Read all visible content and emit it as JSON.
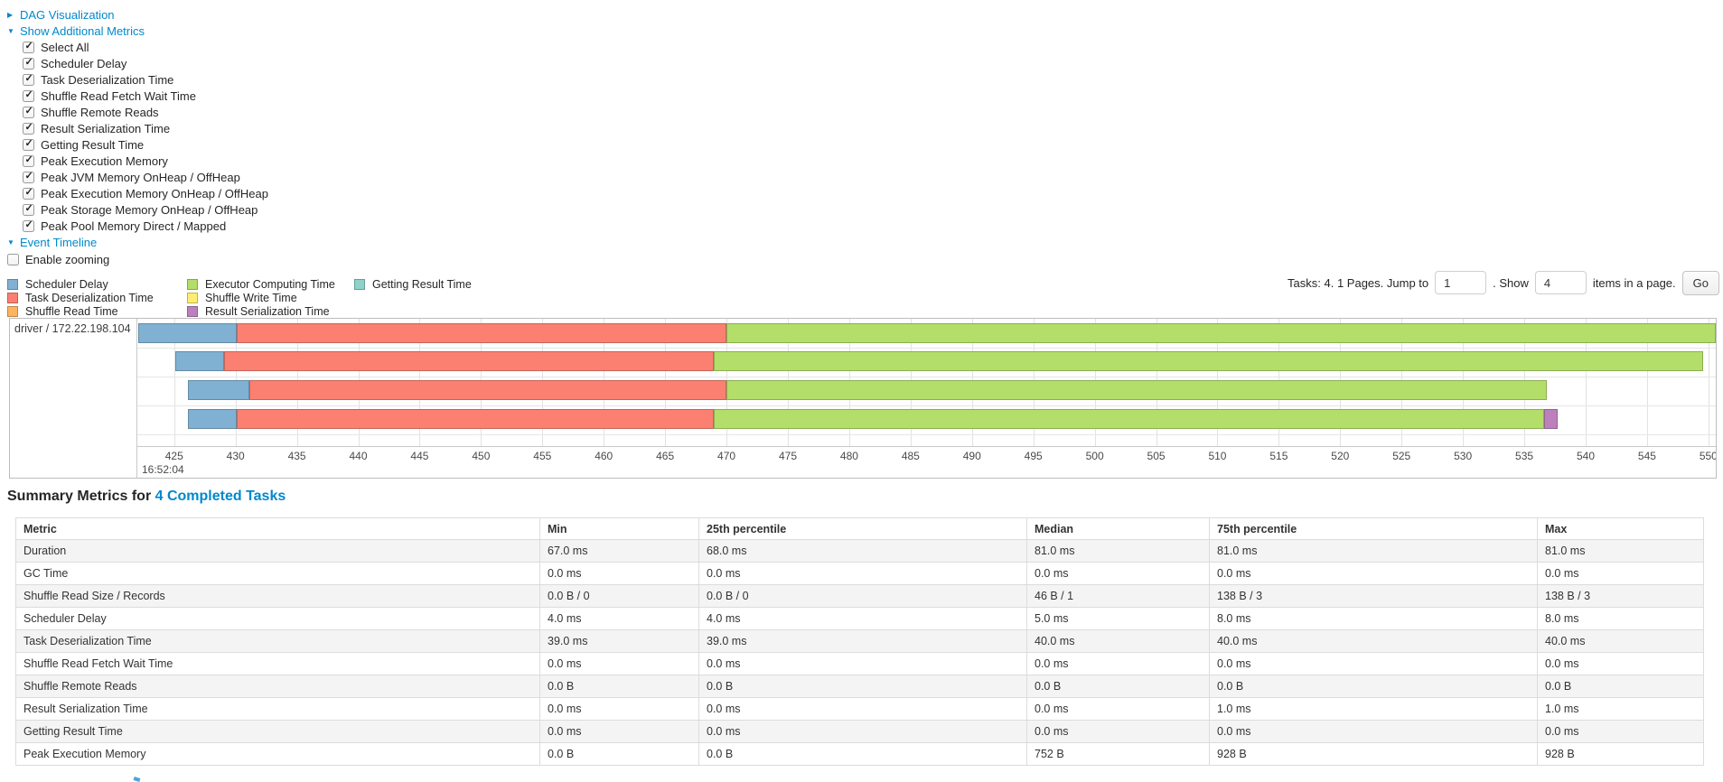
{
  "ui_colors": {
    "link": "#0088cc",
    "table_stripe": "#f4f4f4",
    "table_border": "#dcdcdc",
    "timeline_border": "#bdbdbd"
  },
  "controls": {
    "dag": {
      "arrow": "▶",
      "label": "DAG Visualization"
    },
    "metrics": {
      "arrow": "▼",
      "label": "Show Additional Metrics"
    },
    "checkboxes": [
      {
        "label": "Select All",
        "checked": true
      },
      {
        "label": "Scheduler Delay",
        "checked": true
      },
      {
        "label": "Task Deserialization Time",
        "checked": true
      },
      {
        "label": "Shuffle Read Fetch Wait Time",
        "checked": true
      },
      {
        "label": "Shuffle Remote Reads",
        "checked": true
      },
      {
        "label": "Result Serialization Time",
        "checked": true
      },
      {
        "label": "Getting Result Time",
        "checked": true
      },
      {
        "label": "Peak Execution Memory",
        "checked": true
      },
      {
        "label": "Peak JVM Memory OnHeap / OffHeap",
        "checked": true
      },
      {
        "label": "Peak Execution Memory OnHeap / OffHeap",
        "checked": true
      },
      {
        "label": "Peak Storage Memory OnHeap / OffHeap",
        "checked": true
      },
      {
        "label": "Peak Pool Memory Direct / Mapped",
        "checked": true
      }
    ],
    "event_timeline": {
      "arrow": "▼",
      "label": "Event Timeline"
    },
    "enable_zooming": {
      "label": "Enable zooming",
      "checked": false
    }
  },
  "pagination": {
    "prefix": "Tasks: 4. 1 Pages. Jump to",
    "jump_value": "1",
    "show_label": ". Show",
    "show_value": "4",
    "suffix": "items in a page.",
    "go_label": "Go"
  },
  "legend": {
    "columns": [
      [
        {
          "key": "scheduler_delay",
          "label": "Scheduler Delay"
        },
        {
          "key": "task_deserialization",
          "label": "Task Deserialization Time"
        },
        {
          "key": "shuffle_read",
          "label": "Shuffle Read Time"
        }
      ],
      [
        {
          "key": "executor_computing",
          "label": "Executor Computing Time"
        },
        {
          "key": "shuffle_write",
          "label": "Shuffle Write Time"
        },
        {
          "key": "result_serialization",
          "label": "Result Serialization Time"
        }
      ],
      [
        {
          "key": "getting_result",
          "label": "Getting Result Time"
        }
      ]
    ]
  },
  "chart_data": {
    "type": "timeline",
    "row_label": "driver / 172.22.198.104",
    "time_label": "16:52:04",
    "x_min": 422.0,
    "x_max": 550.6,
    "tick_step": 5,
    "ticks": [
      425,
      430,
      435,
      440,
      445,
      450,
      455,
      460,
      465,
      470,
      475,
      480,
      485,
      490,
      495,
      500,
      505,
      510,
      515,
      520,
      525,
      530,
      535,
      540,
      545,
      550
    ],
    "colors": {
      "scheduler_delay": "#80B1D3",
      "task_deserialization": "#FB8072",
      "shuffle_read": "#FDB462",
      "executor_computing": "#B3DE69",
      "shuffle_write": "#FFED6F",
      "result_serialization": "#BC80BD",
      "getting_result": "#8DD3C7"
    },
    "tasks": [
      {
        "segments": [
          {
            "name": "scheduler_delay",
            "start": 422.1,
            "end": 430.1
          },
          {
            "name": "task_deserialization",
            "start": 430.1,
            "end": 470.0
          },
          {
            "name": "executor_computing",
            "start": 470.0,
            "end": 550.6
          }
        ]
      },
      {
        "segments": [
          {
            "name": "scheduler_delay",
            "start": 425.1,
            "end": 429.1
          },
          {
            "name": "task_deserialization",
            "start": 429.1,
            "end": 469.0
          },
          {
            "name": "executor_computing",
            "start": 469.0,
            "end": 549.6
          }
        ]
      },
      {
        "segments": [
          {
            "name": "scheduler_delay",
            "start": 426.1,
            "end": 431.1
          },
          {
            "name": "task_deserialization",
            "start": 431.1,
            "end": 470.0
          },
          {
            "name": "executor_computing",
            "start": 470.0,
            "end": 536.8
          }
        ]
      },
      {
        "segments": [
          {
            "name": "scheduler_delay",
            "start": 426.1,
            "end": 430.1
          },
          {
            "name": "task_deserialization",
            "start": 430.1,
            "end": 469.0
          },
          {
            "name": "executor_computing",
            "start": 469.0,
            "end": 536.6
          },
          {
            "name": "result_serialization",
            "start": 536.6,
            "end": 537.7
          }
        ]
      }
    ]
  },
  "summary": {
    "title_prefix": "Summary Metrics for ",
    "title_link": "4 Completed Tasks",
    "table": {
      "headers": [
        "Metric",
        "Min",
        "25th percentile",
        "Median",
        "75th percentile",
        "Max"
      ],
      "rows": [
        [
          "Duration",
          "67.0 ms",
          "68.0 ms",
          "81.0 ms",
          "81.0 ms",
          "81.0 ms"
        ],
        [
          "GC Time",
          "0.0 ms",
          "0.0 ms",
          "0.0 ms",
          "0.0 ms",
          "0.0 ms"
        ],
        [
          "Shuffle Read Size / Records",
          "0.0 B / 0",
          "0.0 B / 0",
          "46 B / 1",
          "138 B / 3",
          "138 B / 3"
        ],
        [
          "Scheduler Delay",
          "4.0 ms",
          "4.0 ms",
          "5.0 ms",
          "8.0 ms",
          "8.0 ms"
        ],
        [
          "Task Deserialization Time",
          "39.0 ms",
          "39.0 ms",
          "40.0 ms",
          "40.0 ms",
          "40.0 ms"
        ],
        [
          "Shuffle Read Fetch Wait Time",
          "0.0 ms",
          "0.0 ms",
          "0.0 ms",
          "0.0 ms",
          "0.0 ms"
        ],
        [
          "Shuffle Remote Reads",
          "0.0 B",
          "0.0 B",
          "0.0 B",
          "0.0 B",
          "0.0 B"
        ],
        [
          "Result Serialization Time",
          "0.0 ms",
          "0.0 ms",
          "0.0 ms",
          "1.0 ms",
          "1.0 ms"
        ],
        [
          "Getting Result Time",
          "0.0 ms",
          "0.0 ms",
          "0.0 ms",
          "0.0 ms",
          "0.0 ms"
        ],
        [
          "Peak Execution Memory",
          "0.0 B",
          "0.0 B",
          "752 B",
          "928 B",
          "928 B"
        ]
      ]
    }
  }
}
